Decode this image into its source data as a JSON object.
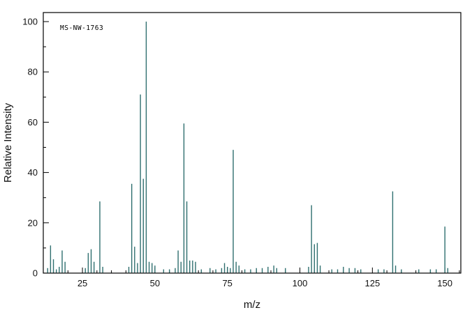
{
  "figure": {
    "annotation": "MS-NW-1763",
    "xlabel": "m/z",
    "ylabel": "Relative Intensity"
  },
  "chart_data": {
    "type": "bar",
    "subtype": "mass-spectrum-stick-plot",
    "title": "",
    "annotation": "MS-NW-1763",
    "xlabel": "m/z",
    "ylabel": "Relative Intensity",
    "xlim": [
      11.5,
      155.5
    ],
    "ylim": [
      0,
      103.6
    ],
    "x_major_ticks": [
      25,
      50,
      75,
      100,
      125,
      150
    ],
    "x_minor_step": 5,
    "y_major_ticks": [
      0,
      20,
      40,
      60,
      80,
      100
    ],
    "y_minor_step": 10,
    "grid": false,
    "legend": "none",
    "colors": {
      "axis": "#000000",
      "peak": "#2f6f6f",
      "background": "#ffffff"
    },
    "peaks": [
      [
        13,
        2
      ],
      [
        14,
        11
      ],
      [
        15,
        5.5
      ],
      [
        16,
        1.5
      ],
      [
        17,
        2.5
      ],
      [
        18,
        9
      ],
      [
        19,
        4.5
      ],
      [
        26,
        2
      ],
      [
        27,
        8
      ],
      [
        28,
        9.5
      ],
      [
        29,
        4.5
      ],
      [
        31,
        28.5
      ],
      [
        32,
        2.5
      ],
      [
        41,
        2.5
      ],
      [
        42,
        35.5
      ],
      [
        43,
        10.5
      ],
      [
        44,
        4
      ],
      [
        45,
        71
      ],
      [
        46,
        37.5
      ],
      [
        47,
        100
      ],
      [
        48,
        4.5
      ],
      [
        49,
        4
      ],
      [
        50,
        3
      ],
      [
        53,
        1.5
      ],
      [
        55,
        1.5
      ],
      [
        57,
        2
      ],
      [
        58,
        9
      ],
      [
        59,
        4.5
      ],
      [
        60,
        59.5
      ],
      [
        61,
        28.5
      ],
      [
        62,
        5
      ],
      [
        63,
        5
      ],
      [
        64,
        4.5
      ],
      [
        66,
        1.5
      ],
      [
        69,
        2
      ],
      [
        71,
        1.5
      ],
      [
        73,
        2
      ],
      [
        74,
        4
      ],
      [
        75,
        2.5
      ],
      [
        76,
        2
      ],
      [
        77,
        49
      ],
      [
        78,
        4.5
      ],
      [
        79,
        3
      ],
      [
        81,
        1.5
      ],
      [
        83,
        1.5
      ],
      [
        85,
        2
      ],
      [
        87,
        2
      ],
      [
        89,
        2.5
      ],
      [
        91,
        3
      ],
      [
        92,
        2
      ],
      [
        95,
        2
      ],
      [
        103,
        2.5
      ],
      [
        104,
        27
      ],
      [
        105,
        11.5
      ],
      [
        106,
        12
      ],
      [
        107,
        3
      ],
      [
        111,
        1.5
      ],
      [
        113,
        1.5
      ],
      [
        115,
        2.5
      ],
      [
        117,
        2
      ],
      [
        119,
        2
      ],
      [
        121,
        1.5
      ],
      [
        127,
        1.5
      ],
      [
        129,
        1.5
      ],
      [
        132,
        32.5
      ],
      [
        133,
        3
      ],
      [
        135,
        1.5
      ],
      [
        141,
        1.5
      ],
      [
        145,
        1.5
      ],
      [
        147,
        1.5
      ],
      [
        150,
        18.5
      ],
      [
        151,
        2
      ]
    ]
  },
  "layout_note": "peaks are [m/z, relative intensity 0-100]"
}
